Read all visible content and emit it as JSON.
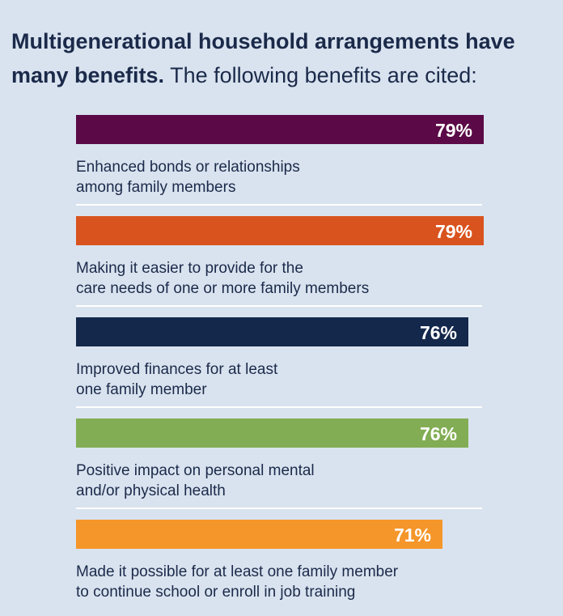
{
  "heading": {
    "bold": "Multigenerational household arrangements have many benefits.",
    "light": "The following benefits are cited:"
  },
  "chart_data": {
    "type": "bar",
    "orientation": "horizontal",
    "title": "Multigenerational household arrangements have many benefits. The following benefits are cited:",
    "xlim": [
      0,
      100
    ],
    "unit": "%",
    "categories": [
      "Enhanced bonds or relationships among family members",
      "Making it easier to provide for the care needs of one or more family members",
      "Improved finances for at least one family member",
      "Positive impact on personal mental and/or physical health",
      "Made it possible for at least one family member to continue school or enroll in job training"
    ],
    "label_lines": [
      [
        "Enhanced bonds or relationships",
        "among family members"
      ],
      [
        "Making it easier to provide for the",
        "care needs of one or more family members"
      ],
      [
        "Improved finances for at least",
        "one family member"
      ],
      [
        "Positive impact on personal mental",
        "and/or physical health"
      ],
      [
        "Made it possible for at least one family member",
        "to continue school or enroll in job training"
      ]
    ],
    "values": [
      79,
      79,
      76,
      76,
      71
    ],
    "value_labels": [
      "79%",
      "79%",
      "76%",
      "76%",
      "71%"
    ],
    "colors": [
      "#5b0a47",
      "#d9531e",
      "#14284b",
      "#82ad54",
      "#f5962a"
    ],
    "divider_color": "#ffffff",
    "background": "#d9e3ef"
  }
}
